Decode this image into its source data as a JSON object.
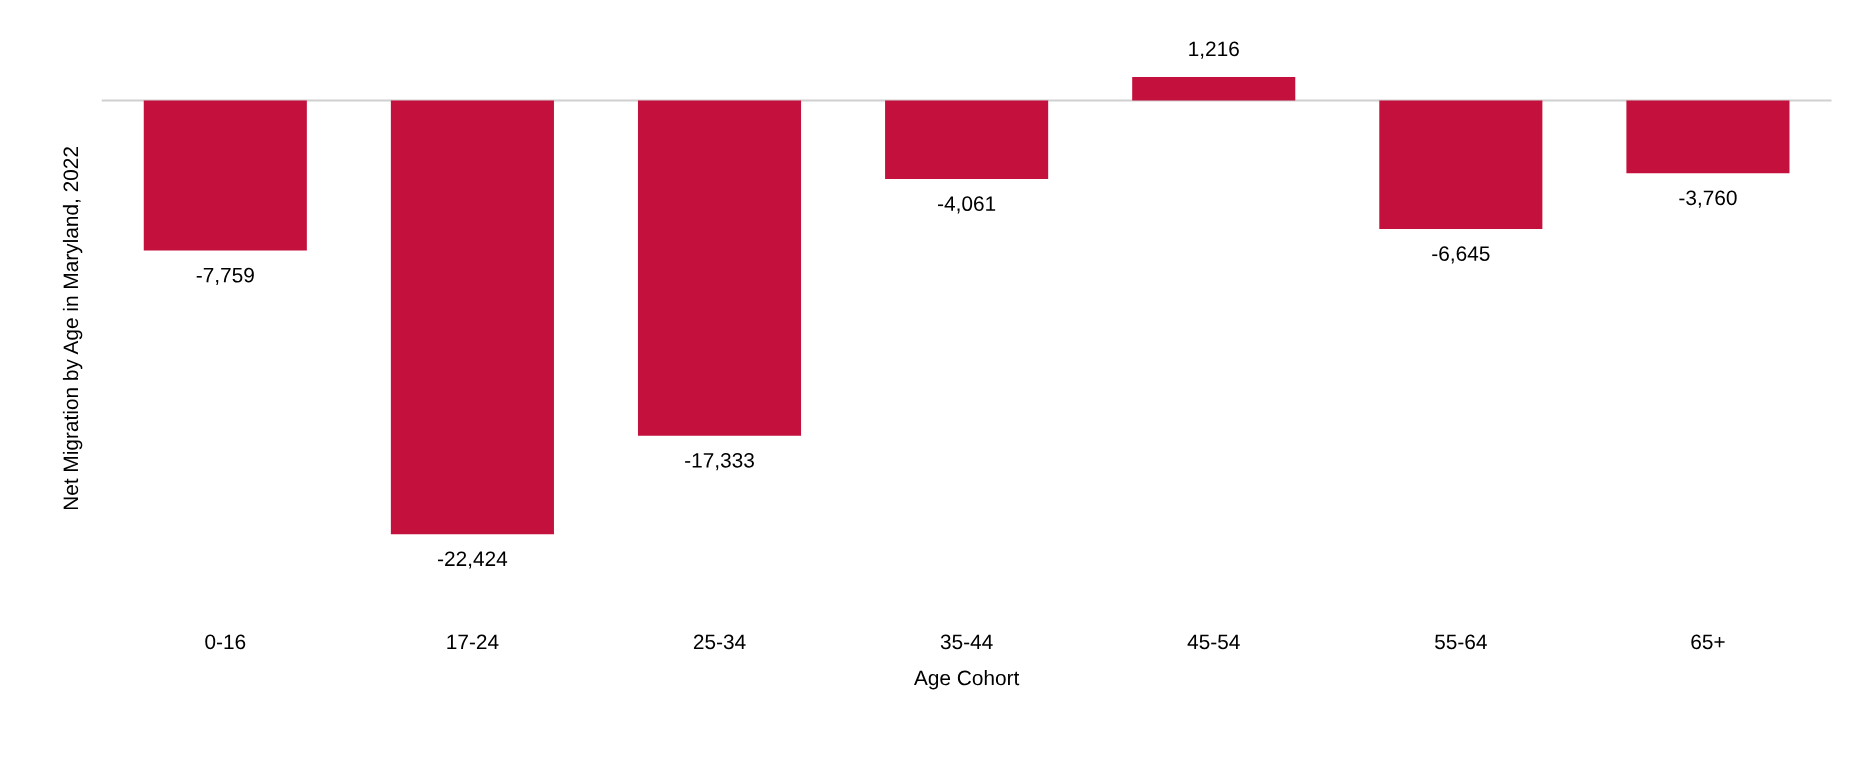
{
  "chart_data": {
    "type": "bar",
    "xlabel": "Age Cohort",
    "ylabel": "Net Migration by Age in Maryland, 2022",
    "categories": [
      "0-16",
      "17-24",
      "25-34",
      "35-44",
      "45-54",
      "55-64",
      "65+"
    ],
    "series": [
      {
        "color": "#c3103c",
        "values": [
          -7759,
          -22424,
          -17333,
          -4061,
          1216,
          -6645,
          -3760
        ],
        "value_labels": [
          "-7,759",
          "-22,424",
          "-17,333",
          "-4,061",
          "1,216",
          "-6,645",
          "-3,760"
        ]
      }
    ],
    "grid": false,
    "legend": false
  }
}
